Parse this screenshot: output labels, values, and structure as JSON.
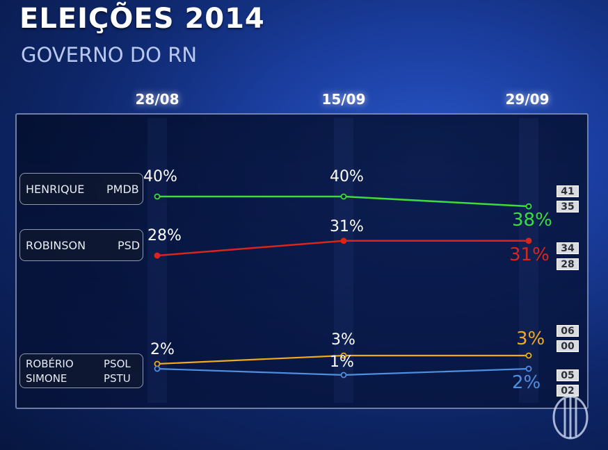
{
  "header": {
    "title": "ELEIÇÕES 2014",
    "subtitle": "GOVERNO DO RN"
  },
  "chart_data": {
    "type": "line",
    "x": [
      "28/08",
      "15/09",
      "29/09"
    ],
    "ylim": [
      0,
      45
    ],
    "series": [
      {
        "name": "HENRIQUE",
        "party": "PMDB",
        "color": "#3ddc3d",
        "values": [
          40,
          40,
          38
        ],
        "labels": [
          "40%",
          "40%",
          "38%"
        ],
        "range": [
          "41",
          "35"
        ]
      },
      {
        "name": "ROBINSON",
        "party": "PSD",
        "color": "#d9261c",
        "values": [
          28,
          31,
          31
        ],
        "labels": [
          "28%",
          "31%",
          "31%"
        ],
        "range": [
          "34",
          "28"
        ]
      },
      {
        "name": "ROBÉRIO",
        "party": "PSOL",
        "color": "#f2a91c",
        "values": [
          2,
          3,
          3
        ],
        "labels": [
          "2%",
          "3%",
          "3%"
        ],
        "range": [
          "06",
          "00"
        ]
      },
      {
        "name": "SIMONE",
        "party": "PSTU",
        "color": "#4f8fe0",
        "values": [
          2,
          1,
          2
        ],
        "labels": [
          "",
          "1%",
          "2%"
        ],
        "range": [
          "05",
          "02"
        ]
      }
    ]
  }
}
